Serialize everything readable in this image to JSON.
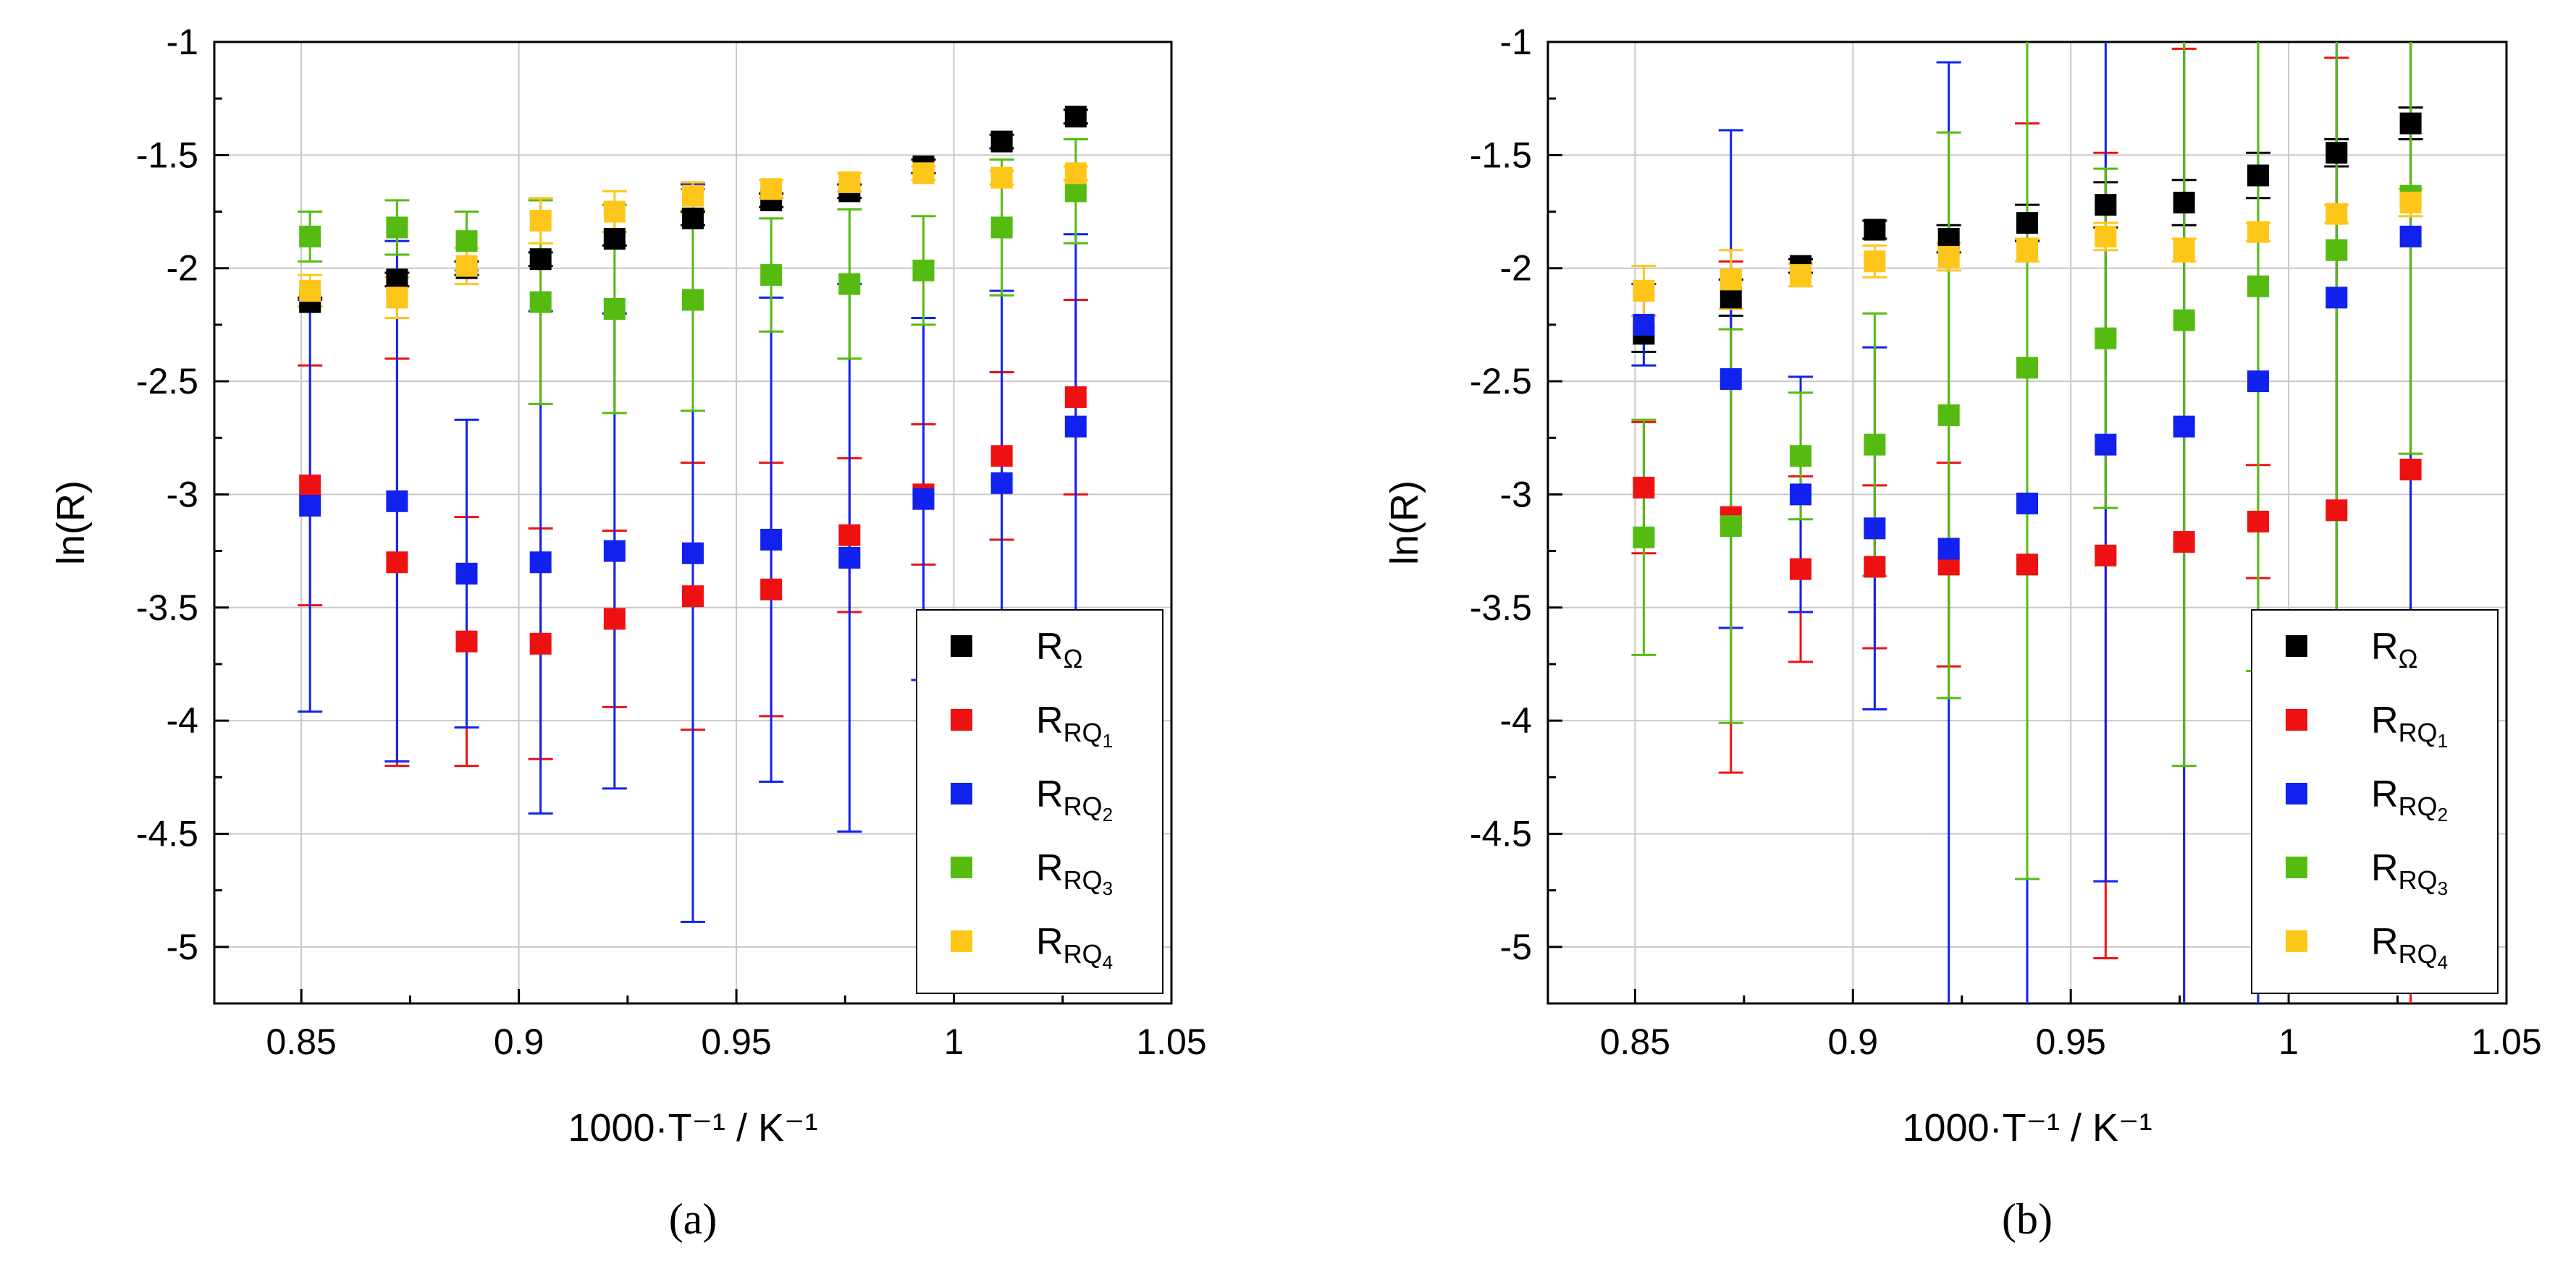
{
  "chart_data": [
    {
      "type": "scatter",
      "panel": "a",
      "caption": "(a)",
      "xlabel": "1000·T⁻¹ / K⁻¹",
      "ylabel": "ln(R)",
      "xlim": [
        0.83,
        1.05
      ],
      "ylim": [
        -5.25,
        -1
      ],
      "xticks": [
        0.85,
        0.9,
        0.95,
        1,
        1.05
      ],
      "xtick_labels": [
        "0.85",
        "0.9",
        "0.95",
        "1",
        "1.05"
      ],
      "yticks": [
        -5,
        -4.5,
        -4,
        -3.5,
        -3,
        -2.5,
        -2,
        -1.5,
        -1
      ],
      "ytick_labels": [
        "-5",
        "-4.5",
        "-4",
        "-3.5",
        "-3",
        "-2.5",
        "-2",
        "-1.5",
        "-1"
      ],
      "grid": true,
      "legend_position": "bottom-right",
      "x": [
        0.852,
        0.872,
        0.888,
        0.905,
        0.922,
        0.94,
        0.958,
        0.976,
        0.993,
        1.011,
        1.028
      ],
      "series": [
        {
          "name": "R_Ω",
          "main": "R",
          "sub": "Ω",
          "color": "#000000",
          "values": [
            -2.15,
            -2.05,
            -2.0,
            -1.96,
            -1.87,
            -1.78,
            -1.7,
            -1.66,
            -1.55,
            -1.44,
            -1.33
          ],
          "err": [
            0.02,
            0.03,
            0.03,
            0.03,
            0.03,
            0.03,
            0.03,
            0.03,
            0.03,
            0.03,
            0.03
          ]
        },
        {
          "name": "R_RQ1",
          "main": "R",
          "sub": "RQ",
          "subsub": "1",
          "color": "#ee1111",
          "values": [
            -2.96,
            -3.3,
            -3.65,
            -3.66,
            -3.55,
            -3.45,
            -3.42,
            -3.18,
            -3.0,
            -2.83,
            -2.57
          ],
          "err": [
            0.53,
            0.9,
            0.55,
            0.51,
            0.39,
            0.59,
            0.56,
            0.34,
            0.31,
            0.37,
            0.43
          ]
        },
        {
          "name": "R_RQ2",
          "main": "R",
          "sub": "RQ",
          "subsub": "2",
          "color": "#1122ee",
          "values": [
            -3.05,
            -3.03,
            -3.35,
            -3.3,
            -3.25,
            -3.26,
            -3.2,
            -3.28,
            -3.02,
            -2.95,
            -2.7
          ],
          "err": [
            0.91,
            1.15,
            0.68,
            1.11,
            1.05,
            1.63,
            1.07,
            1.21,
            0.8,
            0.85,
            0.85
          ]
        },
        {
          "name": "R_RQ3",
          "main": "R",
          "sub": "RQ",
          "subsub": "3",
          "color": "#55bb11",
          "values": [
            -1.86,
            -1.82,
            -1.88,
            -2.15,
            -2.18,
            -2.14,
            -2.03,
            -2.07,
            -2.01,
            -1.82,
            -1.66
          ],
          "err": [
            0.11,
            0.12,
            0.13,
            0.45,
            0.46,
            0.49,
            0.25,
            0.33,
            0.24,
            0.3,
            0.23
          ]
        },
        {
          "name": "R_RQ4",
          "main": "R",
          "sub": "RQ",
          "subsub": "4",
          "color": "#ffc61a",
          "values": [
            -2.1,
            -2.13,
            -1.99,
            -1.79,
            -1.75,
            -1.68,
            -1.65,
            -1.62,
            -1.58,
            -1.6,
            -1.58
          ],
          "err": [
            0.07,
            0.09,
            0.08,
            0.1,
            0.09,
            0.06,
            0.04,
            0.04,
            0.03,
            0.03,
            0.03
          ]
        }
      ]
    },
    {
      "type": "scatter",
      "panel": "b",
      "caption": "(b)",
      "xlabel": "1000·T⁻¹ / K⁻¹",
      "ylabel": "ln(R)",
      "xlim": [
        0.83,
        1.05
      ],
      "ylim": [
        -5.25,
        -1
      ],
      "xticks": [
        0.85,
        0.9,
        0.95,
        1,
        1.05
      ],
      "xtick_labels": [
        "0.85",
        "0.9",
        "0.95",
        "1",
        "1.05"
      ],
      "yticks": [
        -5,
        -4.5,
        -4,
        -3.5,
        -3,
        -2.5,
        -2,
        -1.5,
        -1
      ],
      "ytick_labels": [
        "-5",
        "-4.5",
        "-4",
        "-3.5",
        "-3",
        "-2.5",
        "-2",
        "-1.5",
        "-1"
      ],
      "grid": true,
      "legend_position": "bottom-right",
      "x": [
        0.852,
        0.872,
        0.888,
        0.905,
        0.922,
        0.94,
        0.958,
        0.976,
        0.993,
        1.011,
        1.028
      ],
      "series": [
        {
          "name": "R_Ω",
          "main": "R",
          "sub": "Ω",
          "color": "#000000",
          "values": [
            -2.29,
            -2.13,
            -1.99,
            -1.83,
            -1.87,
            -1.8,
            -1.72,
            -1.71,
            -1.59,
            -1.49,
            -1.36
          ],
          "err": [
            0.08,
            0.08,
            0.03,
            0.04,
            0.06,
            0.08,
            0.1,
            0.1,
            0.1,
            0.06,
            0.07
          ]
        },
        {
          "name": "R_RQ1",
          "main": "R",
          "sub": "RQ",
          "subsub": "1",
          "color": "#ee1111",
          "values": [
            -2.97,
            -3.1,
            -3.33,
            -3.32,
            -3.31,
            -3.31,
            -3.27,
            -3.21,
            -3.12,
            -3.07,
            -2.89
          ],
          "err": [
            0.29,
            1.13,
            0.41,
            0.36,
            0.45,
            1.95,
            1.78,
            2.18,
            0.25,
            2.0,
            2.4
          ]
        },
        {
          "name": "R_RQ2",
          "main": "R",
          "sub": "RQ",
          "subsub": "2",
          "color": "#1122ee",
          "values": [
            -2.25,
            -2.49,
            -3.0,
            -3.15,
            -3.24,
            -3.04,
            -2.78,
            -2.7,
            -2.5,
            -2.13,
            -1.86
          ],
          "err": [
            0.18,
            1.1,
            0.52,
            0.8,
            2.15,
            3.0,
            1.93,
            3.0,
            3.0,
            3.0,
            3.0
          ]
        },
        {
          "name": "R_RQ3",
          "main": "R",
          "sub": "RQ",
          "subsub": "3",
          "color": "#55bb11",
          "values": [
            -3.19,
            -3.14,
            -2.83,
            -2.78,
            -2.65,
            -2.44,
            -2.31,
            -2.23,
            -2.08,
            -1.92,
            -1.68
          ],
          "err": [
            0.52,
            0.87,
            0.28,
            0.58,
            1.25,
            2.26,
            0.75,
            1.97,
            1.7,
            2.3,
            1.14
          ]
        },
        {
          "name": "R_RQ4",
          "main": "R",
          "sub": "RQ",
          "subsub": "4",
          "color": "#ffc61a",
          "values": [
            -2.1,
            -2.05,
            -2.03,
            -1.97,
            -1.95,
            -1.92,
            -1.86,
            -1.92,
            -1.84,
            -1.76,
            -1.71
          ],
          "err": [
            0.11,
            0.13,
            0.05,
            0.07,
            0.06,
            0.05,
            0.06,
            0.05,
            0.04,
            0.04,
            0.06
          ]
        }
      ]
    }
  ]
}
